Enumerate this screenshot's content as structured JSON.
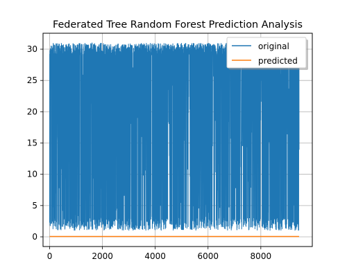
{
  "chart_data": {
    "type": "line",
    "title": "Federated Tree Random Forest Prediction Analysis",
    "xlabel": "",
    "ylabel": "",
    "xlim": [
      -250,
      9950
    ],
    "ylim": [
      -1.55,
      32.55
    ],
    "xticks": [
      0,
      2000,
      4000,
      6000,
      8000
    ],
    "yticks": [
      0,
      5,
      10,
      15,
      20,
      25,
      30
    ],
    "grid": true,
    "legend": "top-right",
    "series": [
      {
        "name": "original",
        "color": "#1f77b4",
        "x_range": [
          0,
          9450
        ],
        "value_range": [
          1,
          31
        ],
        "description_type": "dense-noise"
      },
      {
        "name": "predicted",
        "color": "#ff7f0e",
        "x": [
          0,
          9450
        ],
        "values": [
          0.05,
          0.05
        ]
      }
    ]
  }
}
